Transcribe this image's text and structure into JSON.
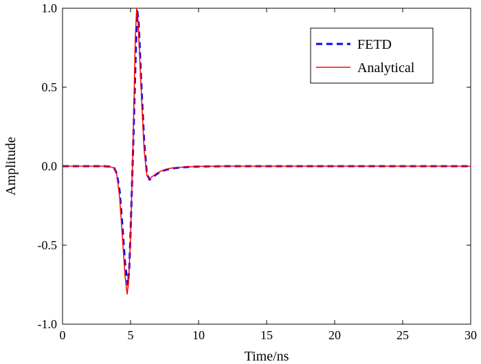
{
  "chart_data": {
    "type": "line",
    "title": "",
    "xlabel": "Time/ns",
    "ylabel": "Amplitude",
    "xlim": [
      0,
      30
    ],
    "ylim": [
      -1.0,
      1.0
    ],
    "xticks": [
      0,
      5,
      10,
      15,
      20,
      25,
      30
    ],
    "xtick_labels": [
      "0",
      "5",
      "10",
      "15",
      "20",
      "25",
      "30"
    ],
    "yticks": [
      -1.0,
      -0.5,
      0.0,
      0.5,
      1.0
    ],
    "ytick_labels": [
      "-1.0",
      "-0.5",
      "0.0",
      "0.5",
      "1.0"
    ],
    "grid": false,
    "legend_position": "top-right",
    "series": [
      {
        "name": "FETD",
        "color": "#0000ff",
        "style": "dashed",
        "x": [
          0,
          2,
          3,
          3.5,
          3.8,
          4.0,
          4.2,
          4.4,
          4.6,
          4.8,
          4.9,
          5.0,
          5.2,
          5.4,
          5.5,
          5.6,
          5.8,
          6.0,
          6.2,
          6.4,
          6.6,
          7.0,
          7.5,
          8.0,
          9.0,
          10.0,
          12.0,
          15.0,
          20.0,
          25.0,
          30.0
        ],
        "y": [
          0.0,
          0.0,
          0.0,
          -0.003,
          -0.012,
          -0.05,
          -0.16,
          -0.38,
          -0.62,
          -0.75,
          -0.66,
          -0.42,
          0.15,
          0.78,
          0.98,
          0.9,
          0.5,
          0.15,
          -0.05,
          -0.085,
          -0.07,
          -0.045,
          -0.025,
          -0.014,
          -0.006,
          -0.002,
          0.0,
          0.0,
          0.0,
          0.0,
          0.0
        ]
      },
      {
        "name": "Analytical",
        "color": "#ff0000",
        "style": "solid",
        "x": [
          0,
          2,
          3,
          3.5,
          3.8,
          4.0,
          4.2,
          4.4,
          4.6,
          4.75,
          4.85,
          5.0,
          5.2,
          5.35,
          5.45,
          5.55,
          5.8,
          6.0,
          6.2,
          6.4,
          6.6,
          7.0,
          7.5,
          8.0,
          9.0,
          10.0,
          12.0,
          15.0,
          20.0,
          25.0,
          30.0
        ],
        "y": [
          0.0,
          0.0,
          0.0,
          -0.003,
          -0.012,
          -0.06,
          -0.2,
          -0.45,
          -0.7,
          -0.81,
          -0.74,
          -0.45,
          0.2,
          0.82,
          1.0,
          0.92,
          0.45,
          0.1,
          -0.06,
          -0.08,
          -0.065,
          -0.04,
          -0.022,
          -0.012,
          -0.005,
          -0.001,
          0.0,
          0.0,
          0.0,
          0.0,
          0.0
        ]
      }
    ]
  }
}
